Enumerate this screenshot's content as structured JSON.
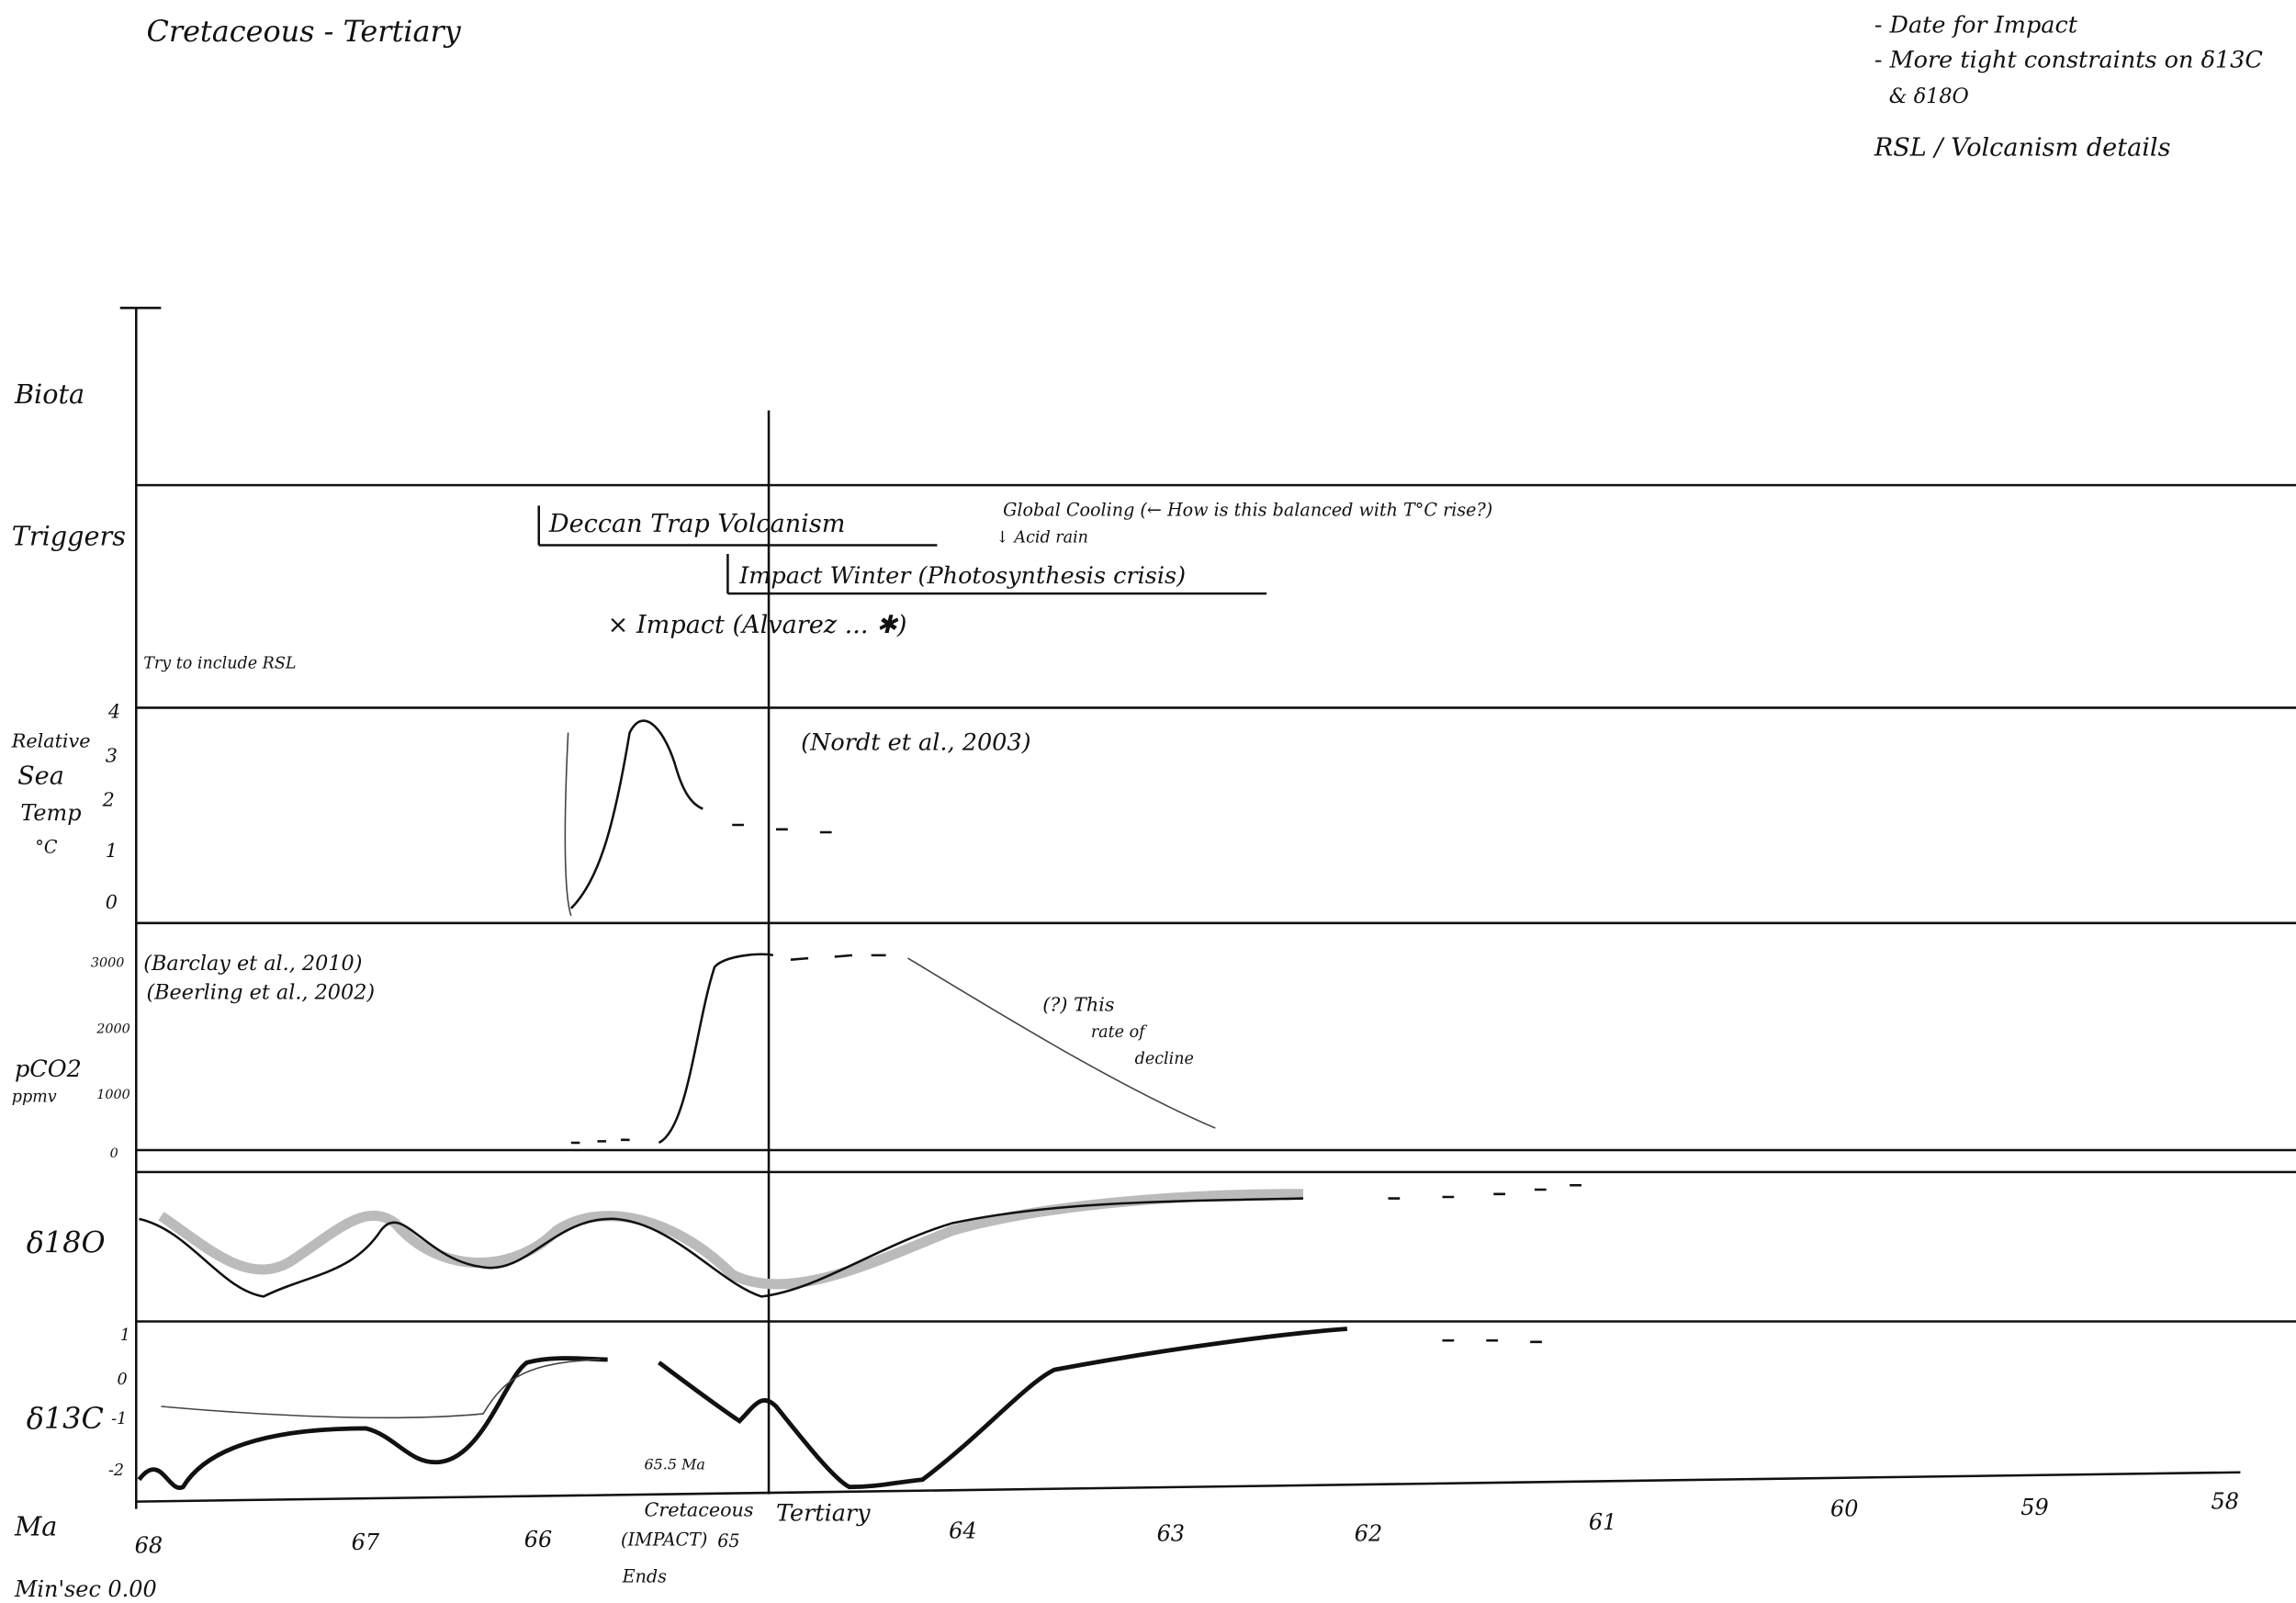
{
  "header": {
    "title": "Cretaceous - Tertiary"
  },
  "notes": [
    "- Date for Impact",
    "- More tight constraints on δ13C",
    "& δ18O",
    "RSL / Volcanism details"
  ],
  "panels": {
    "biota": "Biota",
    "triggers": "Triggers",
    "temp": [
      "Relative",
      "Sea",
      "Temp",
      "°C"
    ],
    "pco2": [
      "pCO2",
      "ppmv"
    ],
    "d18o": "δ18O",
    "d13c": "δ13C",
    "ma": "Ma",
    "minsec": "Min'sec 0.00"
  },
  "triggers": {
    "deccan": "Deccan Trap Volcanism",
    "winter": "Impact Winter (Photosynthesis crisis)",
    "impact": "× Impact (Alvarez ... ✱)",
    "cooling": "Global Cooling (← How is this balanced with T°C rise?)",
    "acid": "↓ Acid rain"
  },
  "annotations": {
    "rsl": "Try to include RSL",
    "nordt": "(Nordt et al., 2003)",
    "barclay": "(Barclay et al., 2010)",
    "beerling": "(Beerling et al., 2002)",
    "decline": [
      "(?) This",
      "rate of",
      "decline"
    ],
    "age": "65.5 Ma",
    "cretaceous": [
      "Cretaceous",
      "(IMPACT)",
      "Ends"
    ],
    "tertiary": "Tertiary",
    "boundary": "65"
  },
  "temp_ticks": [
    "0",
    "1",
    "2",
    "3",
    "4"
  ],
  "pco2_ticks": [
    "0",
    "1000",
    "2000",
    "3000"
  ],
  "d13c_ticks": [
    "1",
    "0",
    "-1",
    "-2"
  ],
  "ma_ticks": [
    "68",
    "67",
    "66",
    "64",
    "63",
    "62",
    "61",
    "60",
    "59",
    "58"
  ]
}
